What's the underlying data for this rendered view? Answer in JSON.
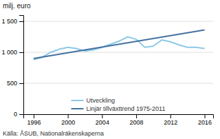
{
  "chart_data": {
    "type": "line",
    "y_label": "milj. euro",
    "source": "Källa: ÅSUB, Nationalräkenskaperna",
    "series": [
      {
        "name": "Utveckling",
        "color": "#8ec8e8",
        "x": [
          1996,
          1997,
          1998,
          1999,
          2000,
          2001,
          2002,
          2003,
          2004,
          2005,
          2006,
          2007,
          2008,
          2009,
          2010,
          2011,
          2012,
          2013,
          2014,
          2015,
          2016
        ],
        "values": [
          880,
          920,
          1000,
          1050,
          1080,
          1060,
          1020,
          1040,
          1080,
          1130,
          1180,
          1250,
          1210,
          1080,
          1100,
          1200,
          1170,
          1120,
          1080,
          1080,
          1060
        ]
      },
      {
        "name": "Linjär tillväxttrend 1975-2011",
        "color": "#4472a0",
        "x": [
          1996,
          2016
        ],
        "values": [
          900,
          1360
        ]
      }
    ],
    "xlim": [
      1994.8,
      2017.0
    ],
    "xticks": [
      1996,
      2000,
      2004,
      2008,
      2012,
      2016
    ],
    "ylim": [
      0,
      1600
    ],
    "yticks": [
      0,
      500,
      {
        "value": 1000,
        "label": "1 000"
      },
      {
        "value": 1500,
        "label": "1 500"
      }
    ],
    "grid": "y",
    "legend": "bottom"
  }
}
